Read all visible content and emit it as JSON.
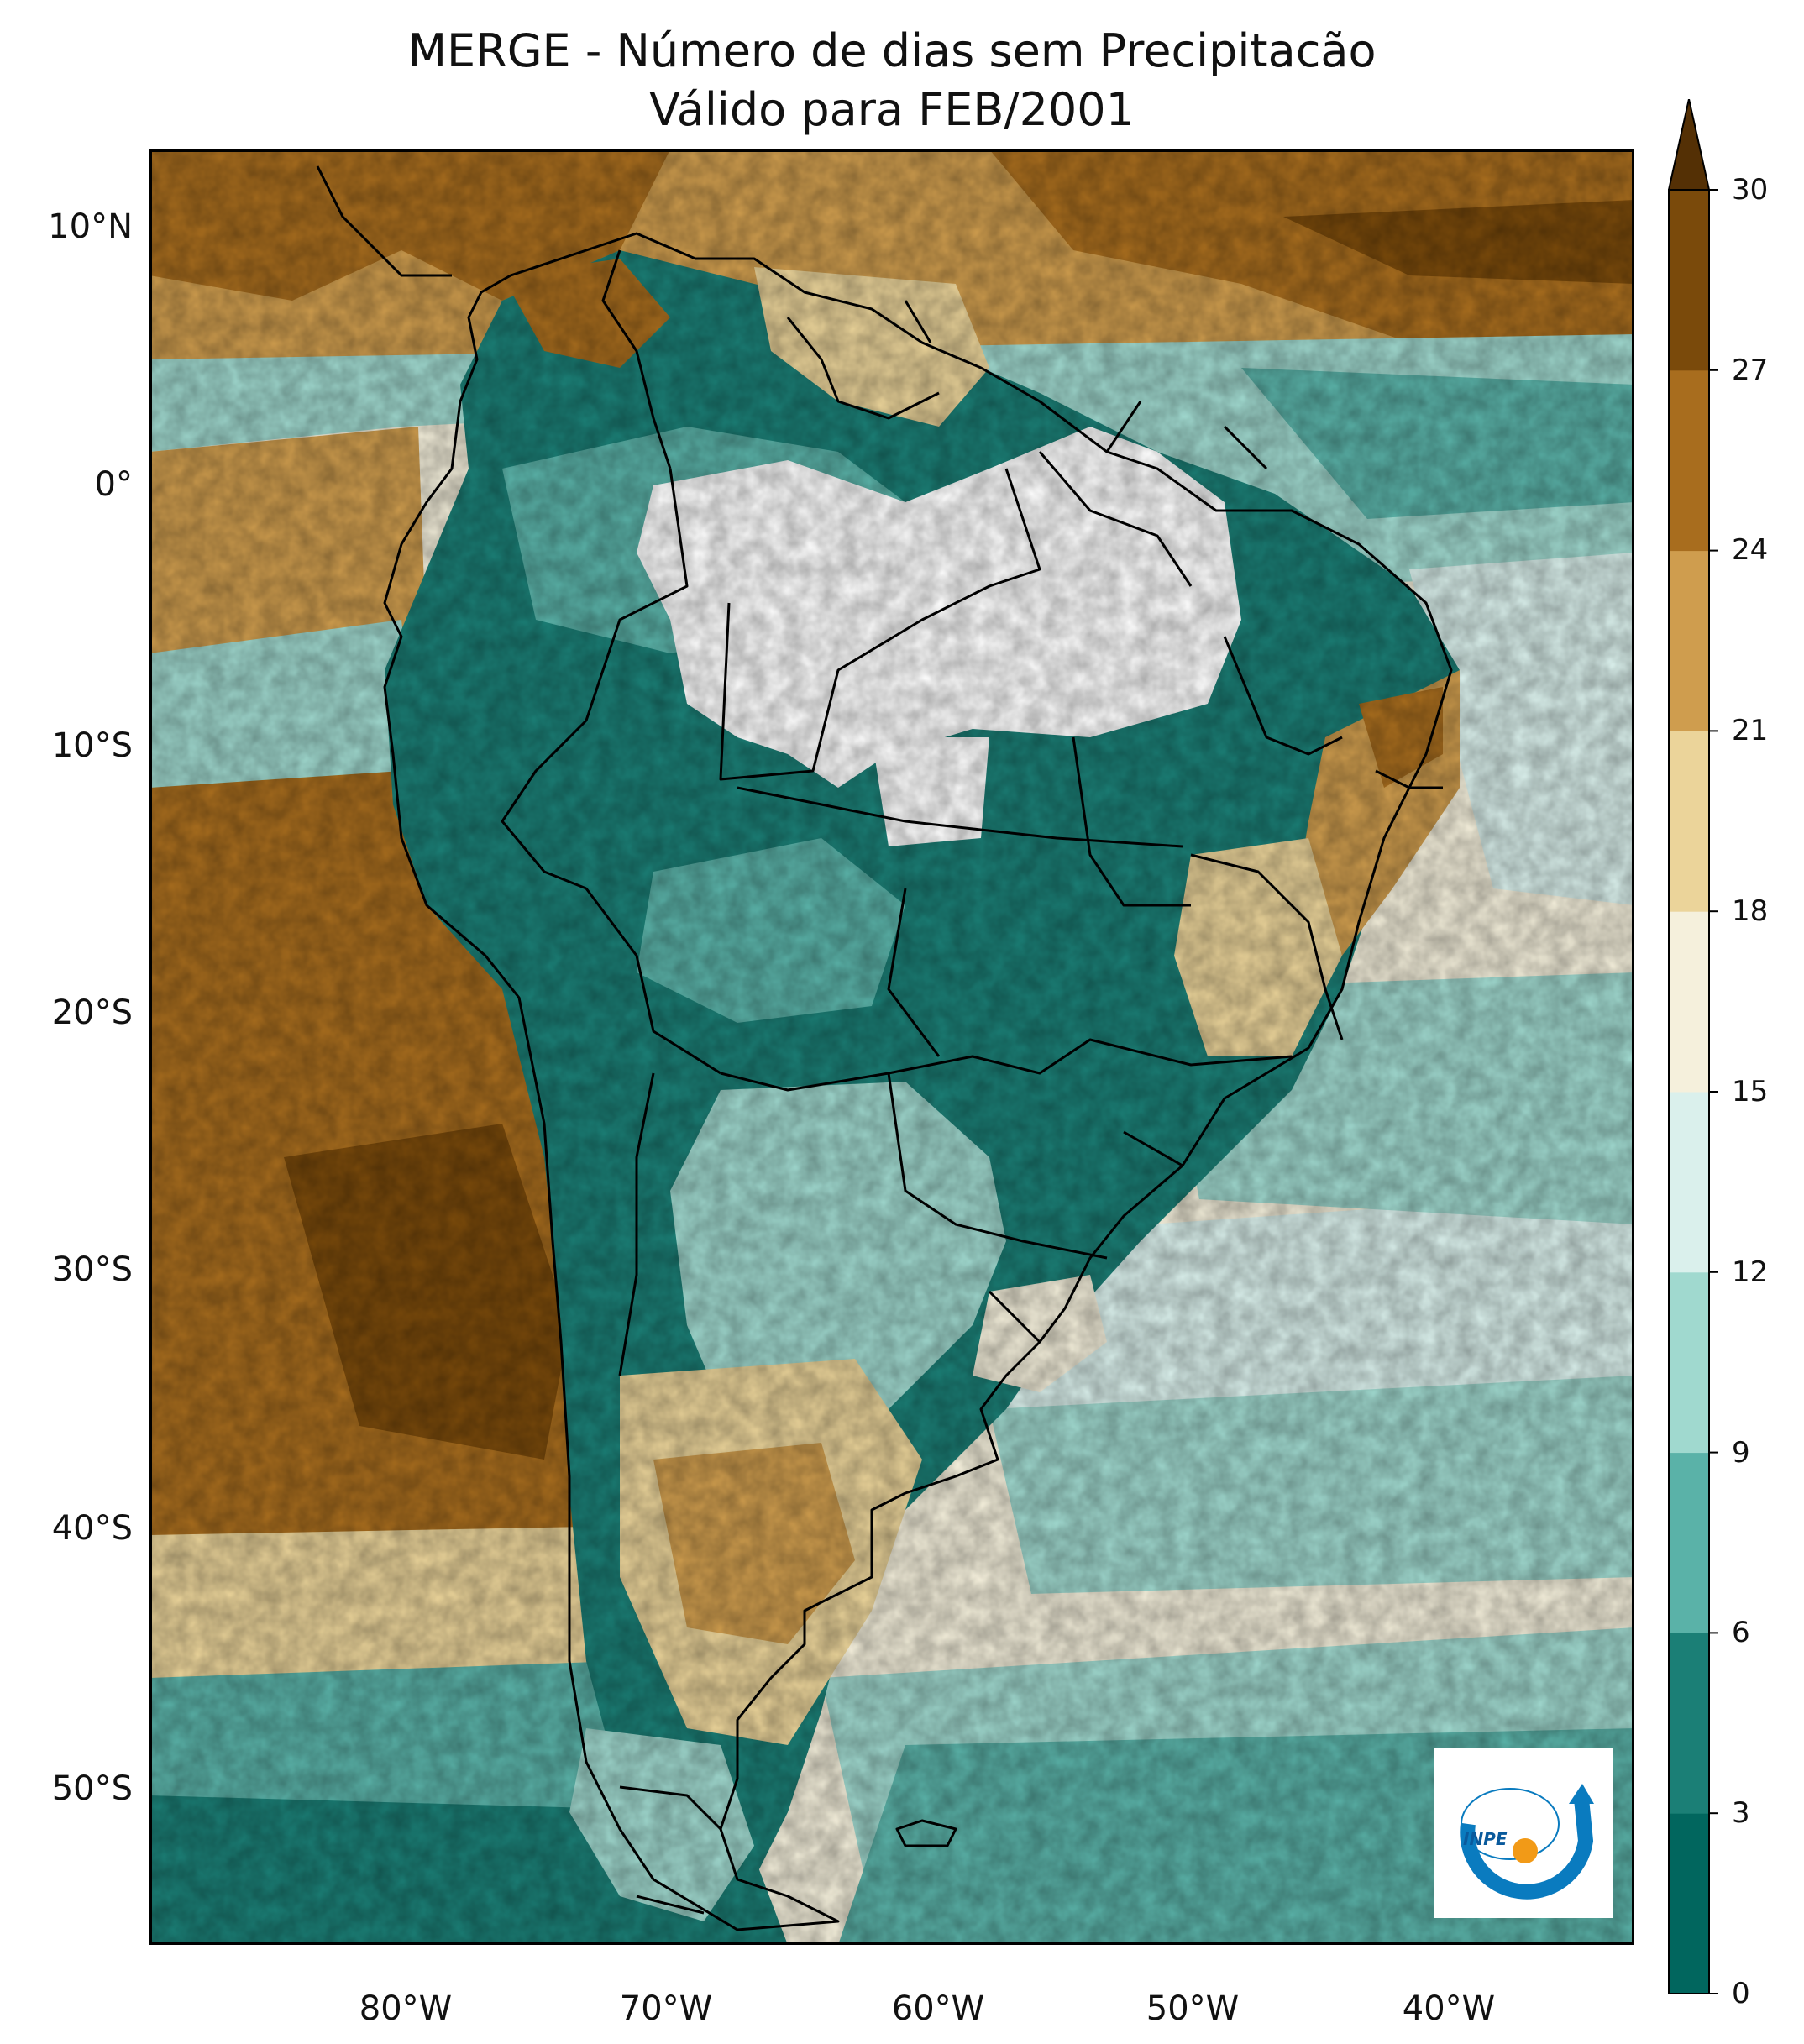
{
  "title": {
    "line1": "MERGE - Número de dias sem Precipitacão",
    "line2": "Válido para FEB/2001"
  },
  "map": {
    "lat_ticks": [
      "10°N",
      "0°",
      "10°S",
      "20°S",
      "30°S",
      "40°S",
      "50°S"
    ],
    "lon_ticks": [
      "80°W",
      "70°W",
      "60°W",
      "50°W",
      "40°W"
    ],
    "lat_values": [
      10,
      0,
      -10,
      -20,
      -30,
      -40,
      -50
    ],
    "lon_values": [
      -80,
      -70,
      -60,
      -50,
      -40
    ],
    "extent": {
      "lon_min": -90,
      "lon_max": -32,
      "lat_min": -56,
      "lat_max": 13
    }
  },
  "colorbar": {
    "ticks": [
      "0",
      "3",
      "6",
      "9",
      "12",
      "15",
      "18",
      "21",
      "24",
      "27",
      "30"
    ],
    "colors": [
      "#01665e",
      "#1b7f76",
      "#5ab2a8",
      "#a0d9cf",
      "#daf0ec",
      "#f5f0dc",
      "#ebd49a",
      "#cf9d4e",
      "#a86d1e",
      "#7a4a0b"
    ],
    "extend_color": "#543005"
  },
  "logo": {
    "text": "INPE",
    "ring_color": "#0a7bbf",
    "dot_color": "#f29a17"
  }
}
